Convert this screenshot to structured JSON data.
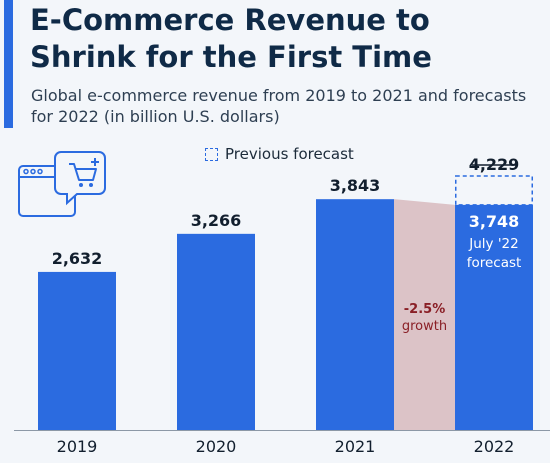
{
  "header": {
    "title": "E-Commerce Revenue to Shrink for the First Time",
    "subtitle": "Global e-commerce revenue from 2019 to 2021 and forecasts for 2022 (in billion U.S. dollars)"
  },
  "legend": {
    "previous_forecast_label": "Previous forecast"
  },
  "icons": {
    "illustration": "browser-cart-icon"
  },
  "colors": {
    "bar": "#2b6be0",
    "gap": "#dcc3c7",
    "growth_text": "#8a1f26",
    "axis": "#8c98a6"
  },
  "chart_data": {
    "type": "bar",
    "title": "E-Commerce Revenue to Shrink for the First Time",
    "categories": [
      "2019",
      "2020",
      "2021",
      "2022"
    ],
    "values": [
      2632,
      3266,
      3843,
      3748
    ],
    "value_labels": [
      "2,632",
      "3,266",
      "3,843",
      "3,748"
    ],
    "previous_forecast": {
      "category": "2022",
      "value": 4229,
      "label": "4,229"
    },
    "current_forecast_note": [
      "July '22",
      "forecast"
    ],
    "growth_annotation": {
      "value": "-2.5%",
      "label": "growth"
    },
    "ylim": [
      0,
      4229
    ],
    "grid": false,
    "legend_position": "top"
  }
}
